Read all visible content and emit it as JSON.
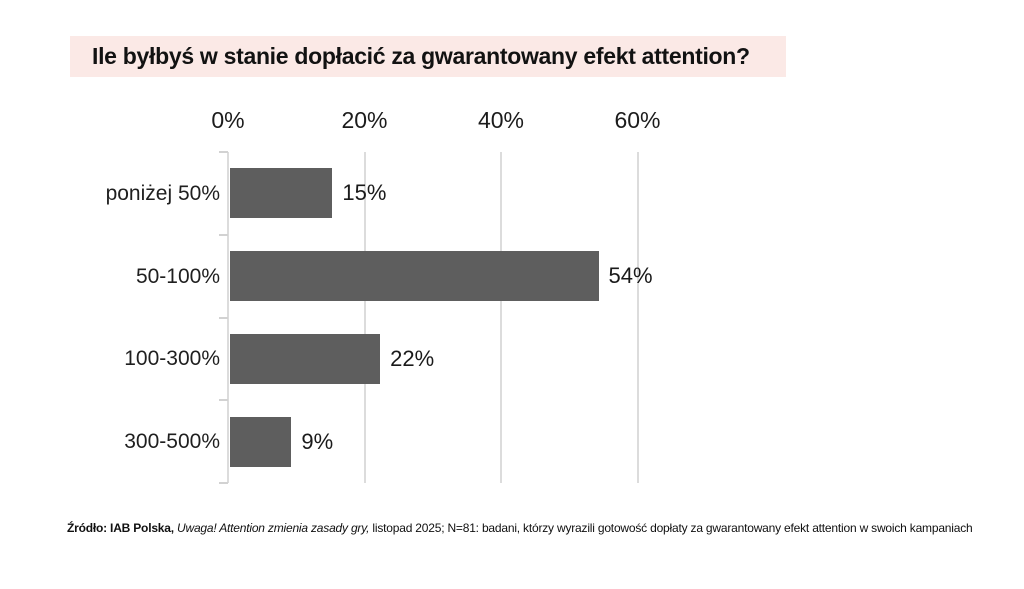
{
  "title": "Ile byłbyś w stanie dopłacić za gwarantowany efekt attention?",
  "colors": {
    "title_highlight_bg": "#fbe9e6",
    "bar": "#5e5e5e",
    "gridline": "#dcdcdc",
    "text": "#161616"
  },
  "chart_data": {
    "type": "bar",
    "orientation": "horizontal",
    "title": "Ile byłbyś w stanie dopłacić za gwarantowany efekt attention?",
    "categories": [
      "poniżej 50%",
      "50-100%",
      "100-300%",
      "300-500%"
    ],
    "values": [
      15,
      54,
      22,
      9
    ],
    "value_labels": [
      "15%",
      "54%",
      "22%",
      "9%"
    ],
    "x_ticks": [
      "0%",
      "20%",
      "40%",
      "60%"
    ],
    "x_tick_values": [
      0,
      20,
      40,
      60
    ],
    "xlim": [
      0,
      60
    ],
    "grid": true,
    "legend": "none",
    "value_label_position": "right-of-bar",
    "xaxis_position": "top"
  },
  "source": {
    "prefix_bold": "Źródło: IAB Polska,",
    "italic": "Uwaga! Attention zmienia zasady gry,",
    "rest": "listopad 2025; N=81: badani, którzy wyrazili gotowość dopłaty za gwarantowany efekt attention w swoich kampaniach"
  }
}
